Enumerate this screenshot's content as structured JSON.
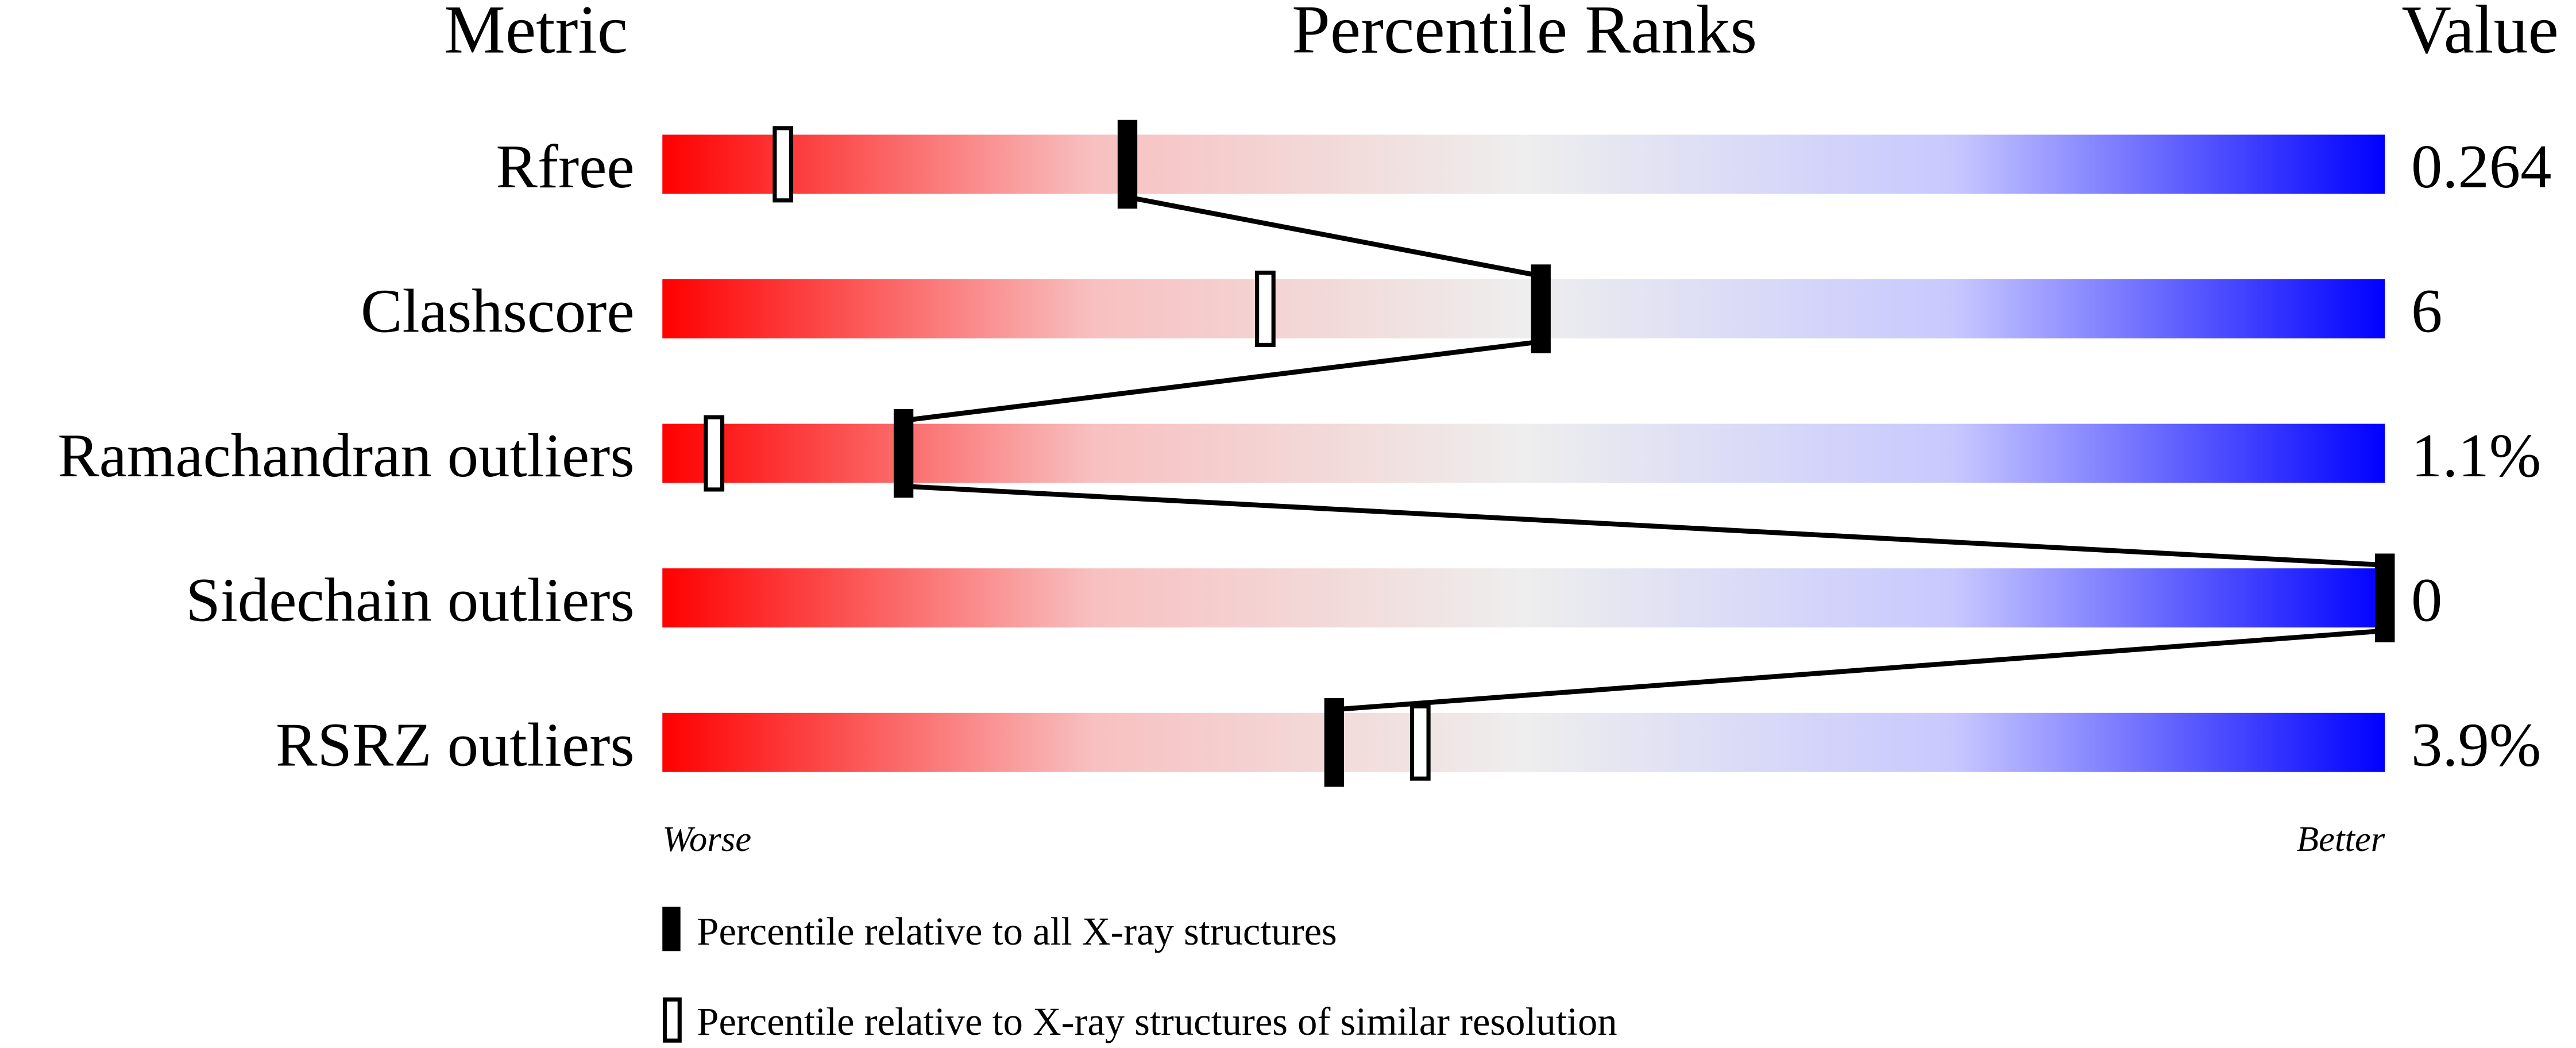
{
  "chart_data": {
    "type": "percentile-slider",
    "headers": {
      "metric": "Metric",
      "ranks": "Percentile Ranks",
      "value": "Value"
    },
    "xlim": [
      0,
      100
    ],
    "axis_labels": {
      "left": "Worse",
      "right": "Better"
    },
    "gradient_colors": [
      "#ff0000",
      "#f8c0c0",
      "#eeeeee",
      "#c8c8ff",
      "#0000ff"
    ],
    "metrics": [
      {
        "name": "Rfree",
        "value": "0.264",
        "percentile_all": 27,
        "percentile_similar": 7
      },
      {
        "name": "Clashscore",
        "value": "6",
        "percentile_all": 51,
        "percentile_similar": 35
      },
      {
        "name": "Ramachandran outliers",
        "value": "1.1%",
        "percentile_all": 14,
        "percentile_similar": 3
      },
      {
        "name": "Sidechain outliers",
        "value": "0",
        "percentile_all": 100,
        "percentile_similar": null
      },
      {
        "name": "RSRZ outliers",
        "value": "3.9%",
        "percentile_all": 39,
        "percentile_similar": 44
      }
    ],
    "legend": [
      {
        "marker": "filled",
        "label": "Percentile relative to all X-ray structures"
      },
      {
        "marker": "open",
        "label": "Percentile relative to X-ray structures of similar resolution"
      }
    ]
  }
}
